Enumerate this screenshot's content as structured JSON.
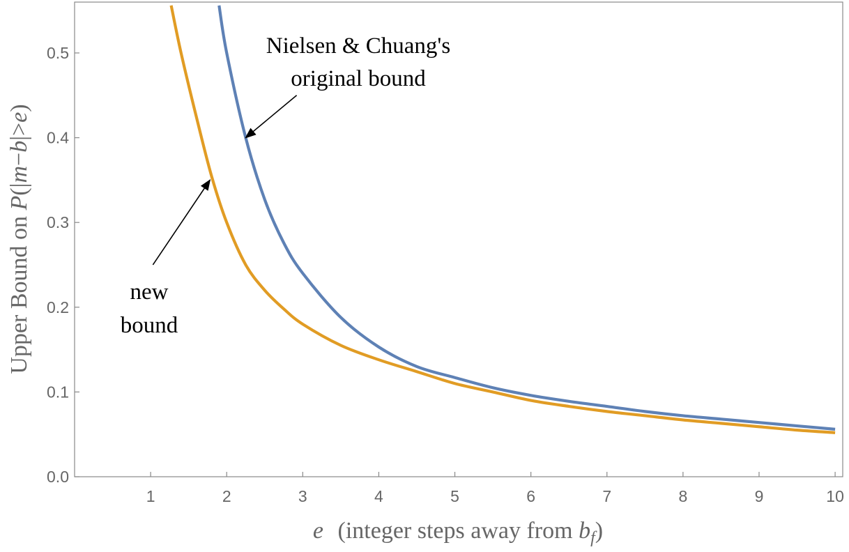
{
  "chart_data": {
    "type": "line",
    "xlabel": "e  (integer steps away from b_f)",
    "xlabel_parts": [
      "e",
      " (integer steps away from ",
      "b",
      "f",
      ")"
    ],
    "ylabel": "Upper Bound on P(|m−b|>e)",
    "ylabel_parts": [
      "Upper Bound on ",
      "P",
      "(|",
      "m",
      "−",
      "b",
      "|>",
      "e",
      ")"
    ],
    "xlim": [
      0,
      10.1
    ],
    "ylim": [
      0,
      0.56
    ],
    "x_ticks": [
      1,
      2,
      3,
      4,
      5,
      6,
      7,
      8,
      9,
      10
    ],
    "x_tick_labels": [
      "1",
      "2",
      "3",
      "4",
      "5",
      "6",
      "7",
      "8",
      "9",
      "10"
    ],
    "y_ticks": [
      0.0,
      0.1,
      0.2,
      0.3,
      0.4,
      0.5
    ],
    "y_tick_labels": [
      "0.0",
      "0.1",
      "0.2",
      "0.3",
      "0.4",
      "0.5"
    ],
    "grid": false,
    "series": [
      {
        "color": "#5E81B5",
        "x": [
          1.9,
          2.0,
          2.25,
          2.5,
          2.75,
          3.0,
          3.5,
          4.0,
          4.5,
          5.0,
          5.5,
          6.0,
          6.5,
          7.0,
          7.5,
          8.0,
          8.5,
          9.0,
          9.5,
          10.0
        ],
        "y": [
          0.556,
          0.5,
          0.4,
          0.327,
          0.276,
          0.24,
          0.188,
          0.153,
          0.13,
          0.117,
          0.105,
          0.096,
          0.089,
          0.083,
          0.077,
          0.072,
          0.068,
          0.064,
          0.06,
          0.056
        ]
      },
      {
        "color": "#E19C24",
        "x": [
          1.27,
          1.4,
          1.6,
          1.8,
          2.0,
          2.25,
          2.5,
          2.75,
          3.0,
          3.5,
          4.0,
          4.5,
          5.0,
          5.5,
          6.0,
          6.5,
          7.0,
          7.5,
          8.0,
          8.5,
          9.0,
          9.5,
          10.0
        ],
        "y": [
          0.556,
          0.5,
          0.425,
          0.355,
          0.3,
          0.25,
          0.22,
          0.198,
          0.18,
          0.155,
          0.138,
          0.124,
          0.11,
          0.1,
          0.09,
          0.083,
          0.077,
          0.072,
          0.067,
          0.063,
          0.059,
          0.055,
          0.052
        ]
      }
    ],
    "annotations": [
      {
        "lines": [
          "Nielsen & Chuang's",
          "original bound"
        ],
        "arrow_to": [
          2.25,
          0.4
        ],
        "arrow_from": [
          2.92,
          0.45
        ]
      },
      {
        "lines": [
          "new",
          "bound"
        ],
        "arrow_to": [
          1.78,
          0.35
        ],
        "arrow_from": [
          1.03,
          0.25
        ]
      }
    ]
  }
}
